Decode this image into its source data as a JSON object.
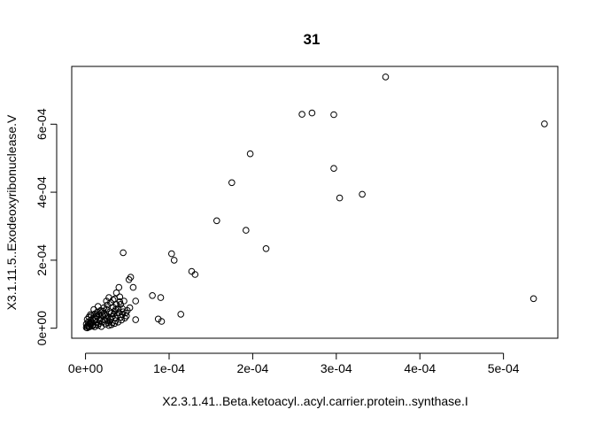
{
  "chart_data": {
    "type": "scatter",
    "title": "31",
    "xlabel": "X2.3.1.41..Beta.ketoacyl..acyl.carrier.protein..synthase.I",
    "ylabel": "X3.1.11.5..Exodeoxyribonuclease.V",
    "xlim": [
      -1.65e-05,
      0.000565
    ],
    "ylim": [
      -2.95e-05,
      0.00077
    ],
    "x_ticks": [
      0,
      0.0001,
      0.0002,
      0.0003,
      0.0004,
      0.0005
    ],
    "x_tick_labels": [
      "0e+00",
      "1e-04",
      "2e-04",
      "3e-04",
      "4e-04",
      "5e-04"
    ],
    "y_ticks": [
      0,
      0.0002,
      0.0004,
      0.0006
    ],
    "y_tick_labels": [
      "0e+00",
      "2e-04",
      "4e-04",
      "6e-04"
    ],
    "grid": false,
    "marker": "open-circle",
    "points": [
      [
        0.000359,
        0.000739
      ],
      [
        0.000549,
        0.000601
      ],
      [
        0.000271,
        0.000633
      ],
      [
        0.000259,
        0.000629
      ],
      [
        0.000297,
        0.000628
      ],
      [
        0.000197,
        0.000513
      ],
      [
        0.000297,
        0.00047
      ],
      [
        0.000175,
        0.000428
      ],
      [
        0.000331,
        0.000394
      ],
      [
        0.000304,
        0.000383
      ],
      [
        0.000157,
        0.000316
      ],
      [
        0.000192,
        0.000288
      ],
      [
        0.000216,
        0.000234
      ],
      [
        0.000536,
        8.7e-05
      ],
      [
        4.5e-05,
        0.000222
      ],
      [
        0.000103,
        0.000219
      ],
      [
        0.000106,
        0.0002
      ],
      [
        0.000127,
        0.000167
      ],
      [
        0.000131,
        0.000158
      ],
      [
        5.4e-05,
        0.00015
      ],
      [
        5.2e-05,
        0.000143
      ],
      [
        5.7e-05,
        0.00012
      ],
      [
        4e-05,
        0.00012
      ],
      [
        3.7e-05,
        0.000104
      ],
      [
        8e-05,
        9.6e-05
      ],
      [
        9e-05,
        9e-05
      ],
      [
        6e-05,
        8e-05
      ],
      [
        4.6e-05,
        8e-05
      ],
      [
        0.000114,
        4.1e-05
      ],
      [
        8.7e-05,
        2.7e-05
      ],
      [
        9.1e-05,
        2e-05
      ],
      [
        6e-05,
        2.5e-05
      ],
      [
        2.8e-05,
        9e-05
      ],
      [
        3.3e-05,
        8.3e-05
      ],
      [
        4.2e-05,
        7e-05
      ],
      [
        4.4e-05,
        5.8e-05
      ],
      [
        5e-05,
        5.2e-05
      ],
      [
        4.8e-05,
        4.5e-05
      ],
      [
        3.6e-05,
        5.5e-05
      ],
      [
        3e-05,
        7.5e-05
      ],
      [
        2.6e-05,
        6.8e-05
      ],
      [
        2.2e-05,
        6e-05
      ],
      [
        1.8e-05,
        5.2e-05
      ],
      [
        1.4e-05,
        4.7e-05
      ],
      [
        1e-05,
        5.5e-05
      ],
      [
        6e-06,
        4e-05
      ],
      [
        4e-06,
        3.3e-05
      ],
      [
        2e-06,
        2.6e-05
      ],
      [
        3e-06,
        1.8e-05
      ],
      [
        1e-06,
        1.2e-05
      ],
      [
        2e-06,
        6e-06
      ],
      [
        4e-06,
        3e-06
      ],
      [
        6e-06,
        1e-05
      ],
      [
        8e-06,
        1.6e-05
      ],
      [
        1e-05,
        2.2e-05
      ],
      [
        1.2e-05,
        2.8e-05
      ],
      [
        1.4e-05,
        3.4e-05
      ],
      [
        1.6e-05,
        4e-05
      ],
      [
        1.8e-05,
        3e-05
      ],
      [
        2e-05,
        3.8e-05
      ],
      [
        2.2e-05,
        4.4e-05
      ],
      [
        2.4e-05,
        3.6e-05
      ],
      [
        2.6e-05,
        2.8e-05
      ],
      [
        2.8e-05,
        2e-05
      ],
      [
        3e-05,
        2.6e-05
      ],
      [
        3.2e-05,
        3.4e-05
      ],
      [
        3.4e-05,
        4.2e-05
      ],
      [
        3.6e-05,
        3e-05
      ],
      [
        3.8e-05,
        3.8e-05
      ],
      [
        4e-05,
        4.6e-05
      ],
      [
        4.2e-05,
        3.2e-05
      ],
      [
        4.4e-05,
        4e-05
      ],
      [
        8e-06,
        6e-06
      ],
      [
        1.2e-05,
        1e-05
      ],
      [
        1.6e-05,
        1.4e-05
      ],
      [
        2e-05,
        1.8e-05
      ],
      [
        2.4e-05,
        1.2e-05
      ],
      [
        2.8e-05,
        8e-06
      ],
      [
        3.2e-05,
        1.6e-05
      ],
      [
        3.6e-05,
        2.2e-05
      ],
      [
        6e-06,
        2.4e-05
      ],
      [
        9e-06,
        3e-05
      ],
      [
        1.3e-05,
        3.6e-05
      ],
      [
        1.7e-05,
        2.6e-05
      ],
      [
        2.1e-05,
        5e-05
      ],
      [
        2.5e-05,
        5.6e-05
      ],
      [
        2.9e-05,
        4.8e-05
      ],
      [
        3.3e-05,
        6.2e-05
      ],
      [
        3.7e-05,
        7e-05
      ],
      [
        4.1e-05,
        7.8e-05
      ],
      [
        3e-06,
        8e-06
      ],
      [
        5e-06,
        1.4e-05
      ],
      [
        7e-06,
        2e-05
      ],
      [
        1.1e-05,
        4e-06
      ],
      [
        1.5e-05,
        8e-06
      ],
      [
        1.9e-05,
        5e-06
      ],
      [
        2.3e-05,
        2.4e-05
      ],
      [
        2.7e-05,
        1.6e-05
      ],
      [
        3.1e-05,
        1e-05
      ],
      [
        3.5e-05,
        1.4e-05
      ],
      [
        3.9e-05,
        1.8e-05
      ],
      [
        4.3e-05,
        2.4e-05
      ],
      [
        4.7e-05,
        3e-05
      ],
      [
        4.9e-05,
        3.6e-05
      ],
      [
        1e-06,
        2e-06
      ],
      [
        2e-06,
        1e-06
      ],
      [
        5e-06,
        5e-06
      ],
      [
        9e-06,
        9e-06
      ],
      [
        1.3e-05,
        1.8e-05
      ],
      [
        1.7e-05,
        2.2e-05
      ],
      [
        1.9e-05,
        4.6e-05
      ],
      [
        2.3e-05,
        4e-05
      ],
      [
        2.7e-05,
        3.4e-05
      ],
      [
        3.1e-05,
        4.4e-05
      ],
      [
        3.5e-05,
        5e-05
      ],
      [
        3.9e-05,
        5.8e-05
      ],
      [
        4.5e-05,
        4.8e-05
      ],
      [
        5.3e-05,
        6e-05
      ],
      [
        4.1e-05,
        9.2e-05
      ],
      [
        3.5e-05,
        8.6e-05
      ],
      [
        2.5e-05,
        8e-05
      ],
      [
        1.5e-05,
        6.4e-05
      ],
      [
        1.1e-05,
        4.2e-05
      ],
      [
        7e-06,
        3.6e-05
      ]
    ]
  }
}
